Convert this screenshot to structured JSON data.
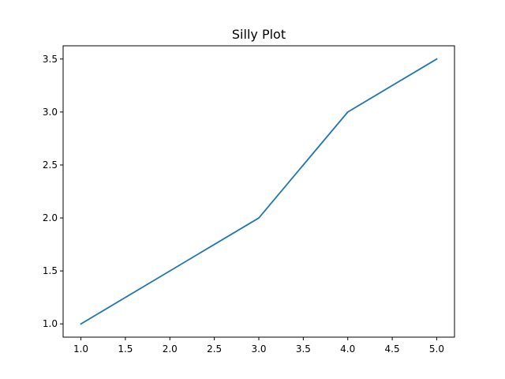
{
  "chart_data": {
    "type": "line",
    "title": "Silly Plot",
    "xlabel": "",
    "ylabel": "",
    "x": [
      1,
      3,
      4,
      5
    ],
    "series": [
      {
        "values": [
          1.0,
          2.0,
          3.0,
          3.5
        ],
        "color": "#1f77b4"
      }
    ],
    "xlim": [
      0.8,
      5.2
    ],
    "ylim": [
      0.875,
      3.625
    ],
    "xticks": [
      1.0,
      1.5,
      2.0,
      2.5,
      3.0,
      3.5,
      4.0,
      4.5,
      5.0
    ],
    "xtick_labels": [
      "1.0",
      "1.5",
      "2.0",
      "2.5",
      "3.0",
      "3.5",
      "4.0",
      "4.5",
      "5.0"
    ],
    "yticks": [
      1.0,
      1.5,
      2.0,
      2.5,
      3.0,
      3.5
    ],
    "ytick_labels": [
      "1.0",
      "1.5",
      "2.0",
      "2.5",
      "3.0",
      "3.5"
    ],
    "grid": false,
    "legend": "none"
  }
}
